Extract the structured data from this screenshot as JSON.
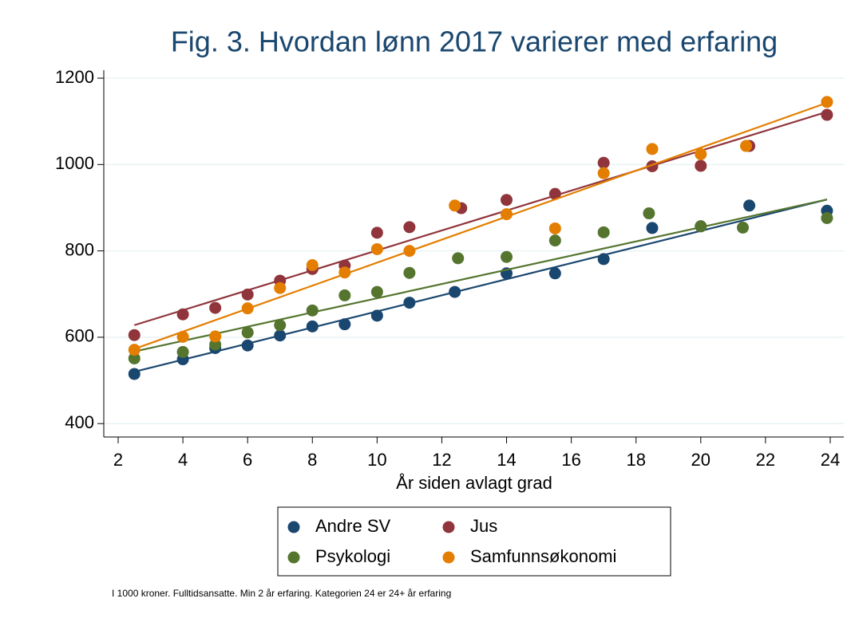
{
  "chart_data": {
    "type": "scatter",
    "title": "Fig. 3. Hvordan lønn 2017 varierer med erfaring",
    "x_label": "År siden avlagt grad",
    "note": "I 1000 kroner. Fulltidsansatte. Min 2 år erfaring. Kategorien 24 er 24+ år erfaring",
    "xlim": [
      1.556,
      24.42
    ],
    "ylim": [
      369,
      1237
    ],
    "xticks": [
      2,
      4,
      6,
      8,
      10,
      12,
      14,
      16,
      18,
      20,
      22,
      24
    ],
    "yticks": [
      400,
      600,
      800,
      1000,
      1200
    ],
    "grid": true,
    "series": [
      {
        "name": "Andre SV",
        "color": "#1a476f",
        "x": [
          2.5,
          4,
          5,
          6,
          7,
          8,
          9,
          10,
          11,
          12.4,
          14,
          15.5,
          17,
          18.5,
          20,
          21.5,
          23.9
        ],
        "values": [
          515,
          549,
          575,
          581,
          604,
          625,
          630,
          650,
          680,
          705,
          748,
          748,
          781,
          853,
          857,
          905,
          893
        ],
        "fit_x": [
          2.5,
          23.9
        ],
        "fit_y": [
          520,
          919
        ]
      },
      {
        "name": "Jus",
        "color": "#90353b",
        "x": [
          2.5,
          4,
          5,
          6,
          7,
          8,
          9,
          10,
          11,
          12.6,
          14,
          15.5,
          17,
          18.5,
          20,
          21.5,
          23.9
        ],
        "values": [
          605,
          653,
          668,
          699,
          731,
          758,
          766,
          842,
          855,
          899,
          918,
          932,
          1004,
          996,
          997,
          1043,
          1115
        ],
        "fit_x": [
          2.5,
          23.9
        ],
        "fit_y": [
          628,
          1122
        ]
      },
      {
        "name": "Psykologi",
        "color": "#55752f",
        "x": [
          2.5,
          4,
          5,
          6,
          7,
          8,
          9,
          10,
          11,
          12.5,
          14,
          15.5,
          17,
          18.4,
          20,
          21.3,
          23.9
        ],
        "values": [
          551,
          566,
          583,
          611,
          628,
          662,
          697,
          705,
          749,
          783,
          786,
          824,
          843,
          887,
          857,
          854,
          876
        ],
        "fit_x": [
          2.5,
          23.9
        ],
        "fit_y": [
          567,
          919
        ]
      },
      {
        "name": "Samfunnsøkonomi",
        "color": "#e37e00",
        "x": [
          2.5,
          4,
          5,
          6,
          7,
          8,
          9,
          10,
          11,
          12.4,
          14,
          15.5,
          17,
          18.5,
          20,
          21.4,
          23.9
        ],
        "values": [
          571,
          601,
          602,
          667,
          714,
          767,
          750,
          804,
          800,
          905,
          885,
          852,
          980,
          1036,
          1024,
          1043,
          1145
        ],
        "fit_x": [
          2.5,
          23.9
        ],
        "fit_y": [
          573,
          1143
        ]
      }
    ]
  }
}
